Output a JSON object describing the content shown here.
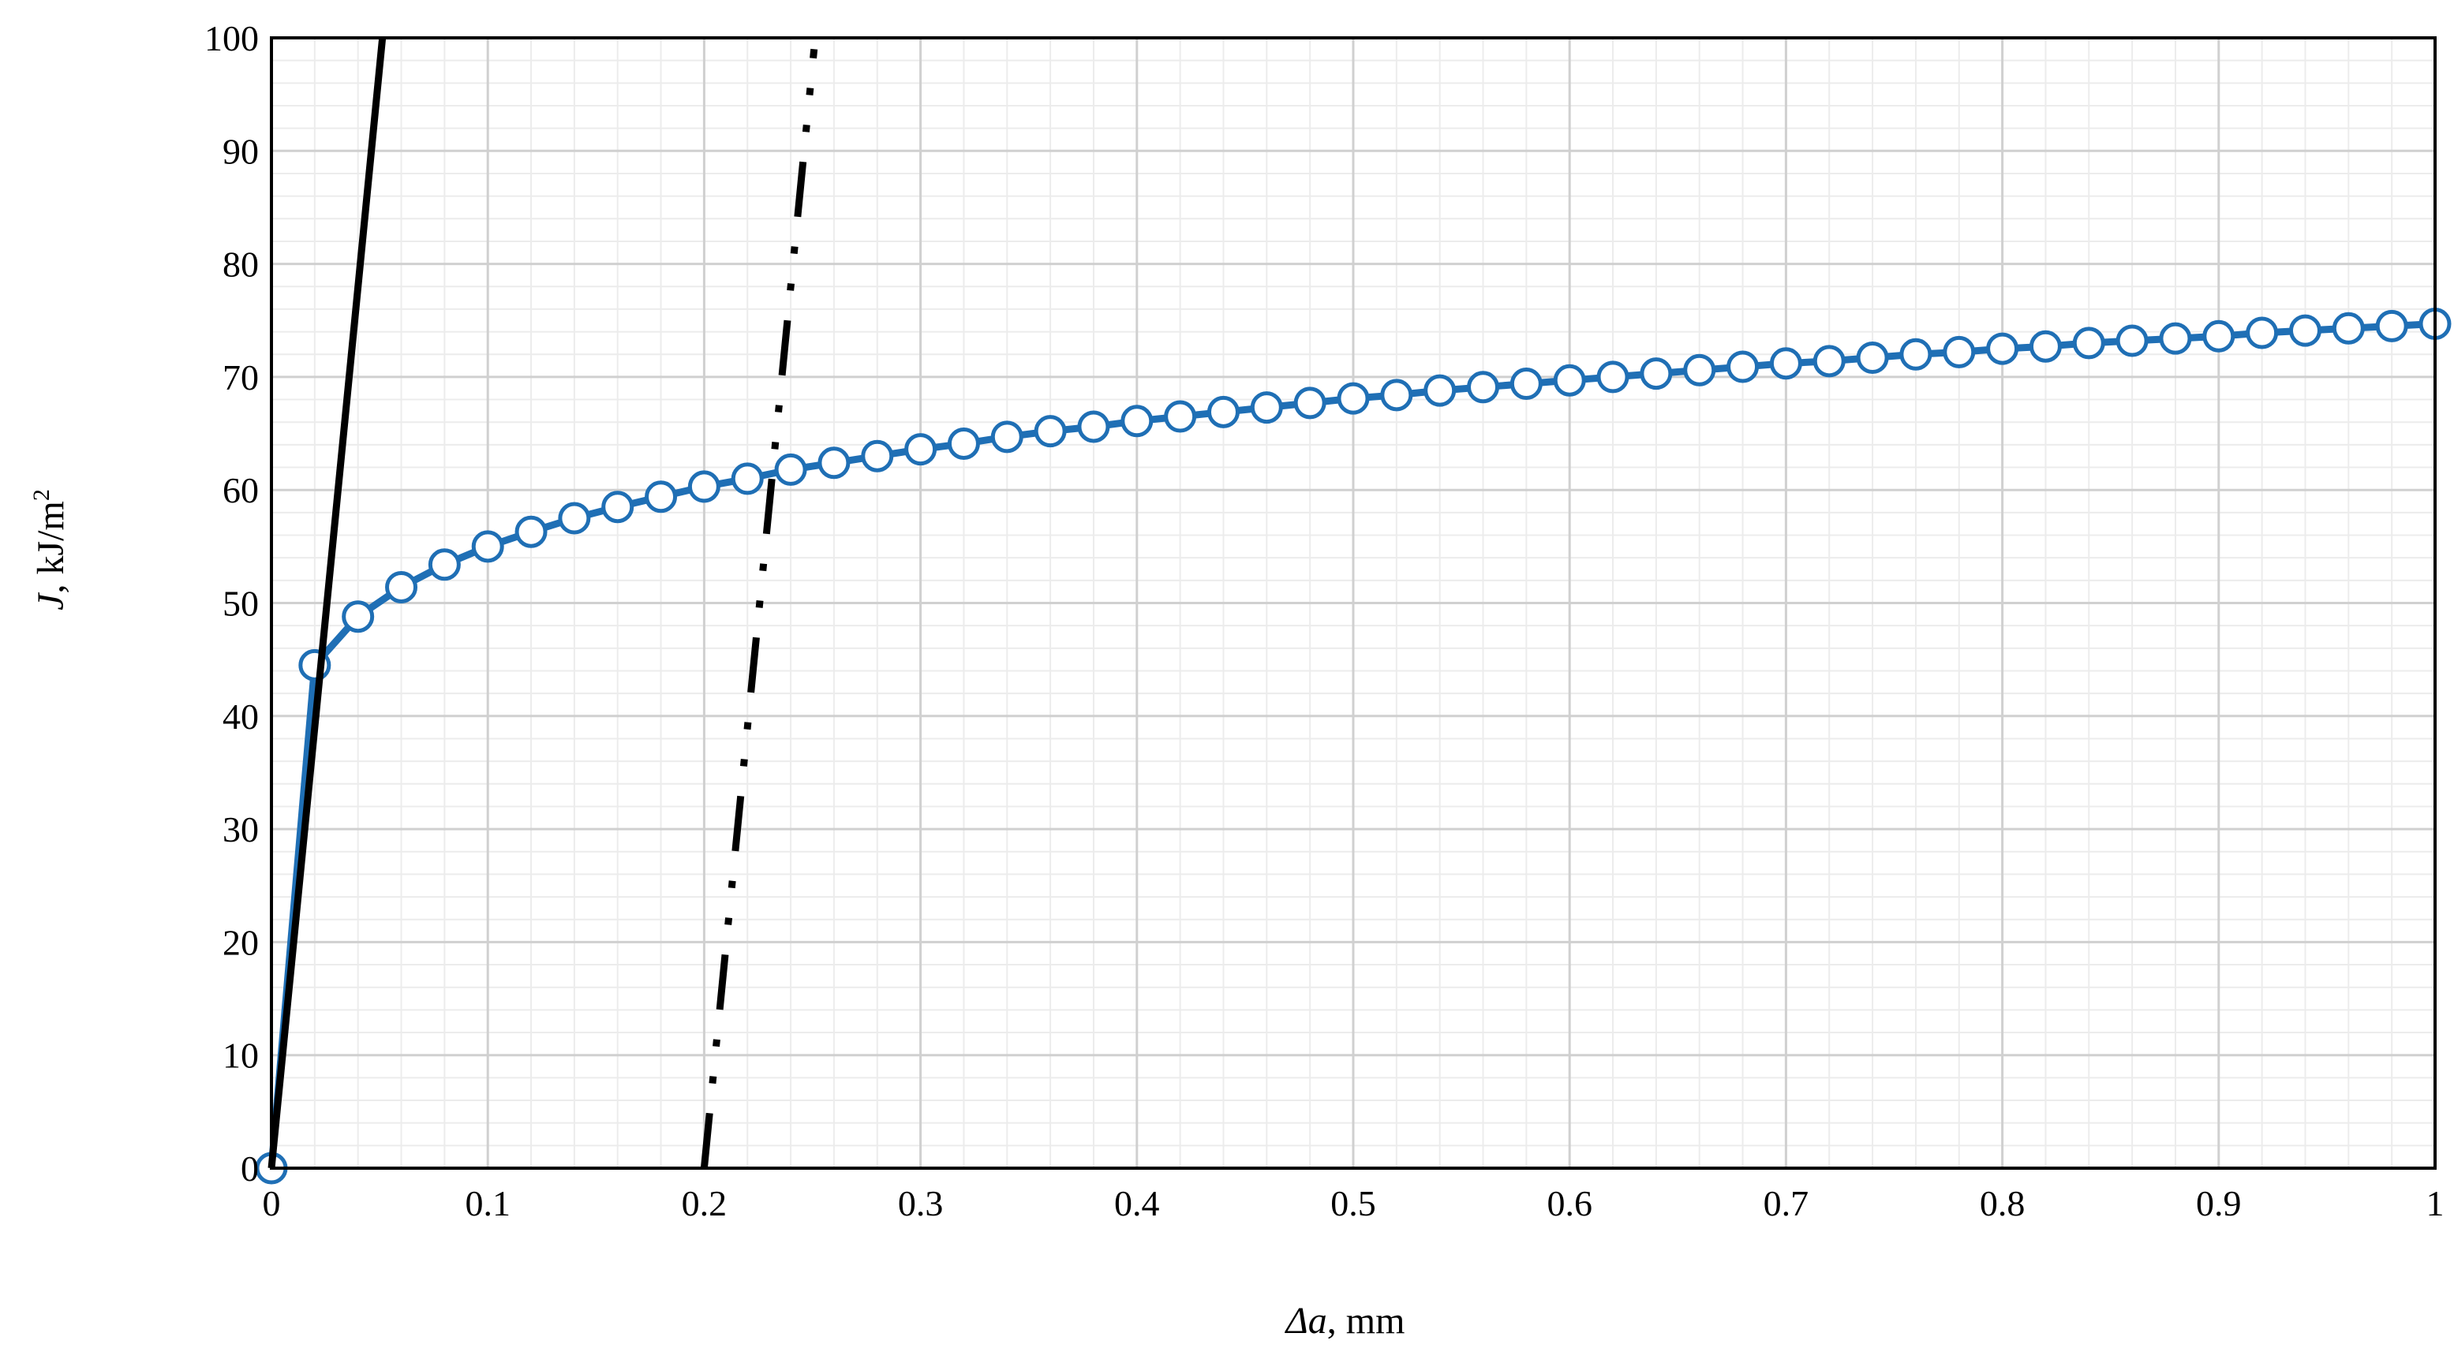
{
  "chart_data": {
    "type": "line",
    "title": "",
    "xlabel": {
      "italic": "Δa",
      "rest": ", mm"
    },
    "ylabel": {
      "italic": "J",
      "rest": ", kJ/m",
      "sup": "2"
    },
    "xlim": [
      0,
      1
    ],
    "ylim": [
      0,
      100
    ],
    "x_major_ticks": [
      0,
      0.1,
      0.2,
      0.3,
      0.4,
      0.5,
      0.6,
      0.7,
      0.8,
      0.9,
      1
    ],
    "x_tick_labels": [
      "0",
      "0.1",
      "0.2",
      "0.3",
      "0.4",
      "0.5",
      "0.6",
      "0.7",
      "0.8",
      "0.9",
      "1"
    ],
    "y_major_ticks": [
      0,
      10,
      20,
      30,
      40,
      50,
      60,
      70,
      80,
      90,
      100
    ],
    "y_tick_labels": [
      "0",
      "10",
      "20",
      "30",
      "40",
      "50",
      "60",
      "70",
      "80",
      "90",
      "100"
    ],
    "x_minor_step": 0.02,
    "y_minor_step": 2,
    "grid": true,
    "colors": {
      "series": "#1F6FB5",
      "marker_fill": "#ffffff",
      "major_grid": "#d0d0d0",
      "minor_grid": "#ececec",
      "lines": "#000000"
    },
    "series": [
      {
        "style": "line-markers",
        "x": [
          0,
          0.02,
          0.04,
          0.06,
          0.08,
          0.1,
          0.12,
          0.14,
          0.16,
          0.18,
          0.2,
          0.22,
          0.24,
          0.26,
          0.28,
          0.3,
          0.32,
          0.34,
          0.36,
          0.38,
          0.4,
          0.42,
          0.44,
          0.46,
          0.48,
          0.5,
          0.52,
          0.54,
          0.56,
          0.58,
          0.6,
          0.62,
          0.64,
          0.66,
          0.68,
          0.7,
          0.72,
          0.74,
          0.76,
          0.78,
          0.8,
          0.82,
          0.84,
          0.86,
          0.88,
          0.9,
          0.92,
          0.94,
          0.96,
          0.98,
          1.0
        ],
        "y": [
          0,
          44.5,
          48.8,
          51.4,
          53.4,
          55.0,
          56.3,
          57.5,
          58.5,
          59.4,
          60.3,
          61.0,
          61.8,
          62.4,
          63.0,
          63.6,
          64.1,
          64.7,
          65.2,
          65.6,
          66.1,
          66.5,
          66.9,
          67.3,
          67.7,
          68.1,
          68.4,
          68.8,
          69.1,
          69.4,
          69.7,
          70.0,
          70.3,
          70.6,
          70.9,
          71.2,
          71.4,
          71.7,
          72.0,
          72.2,
          72.5,
          72.7,
          73.0,
          73.2,
          73.4,
          73.6,
          73.9,
          74.1,
          74.3,
          74.5,
          74.7
        ]
      },
      {
        "style": "solid",
        "x": [
          0,
          0.0513
        ],
        "y": [
          0,
          100
        ]
      },
      {
        "style": "dash-dot-dot",
        "x": [
          0.2,
          0.2508
        ],
        "y": [
          0,
          99
        ]
      }
    ]
  }
}
